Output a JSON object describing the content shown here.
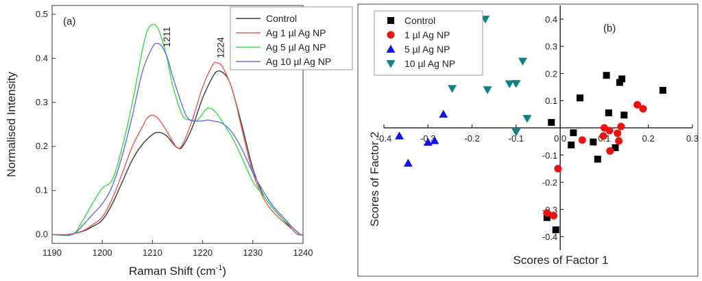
{
  "chart_data": [
    {
      "type": "line",
      "panel_label": "(a)",
      "xlabel": "Raman Shift (cm",
      "xlabel_sup": "-1",
      "xlabel_close": ")",
      "ylabel": "Normalised Intensity",
      "xlim": [
        1190,
        1240
      ],
      "ylim": [
        -0.02,
        0.52
      ],
      "xticks": [
        "1190",
        "1200",
        "1210",
        "1220",
        "1230",
        "1240"
      ],
      "yticks": [
        "0.0",
        "0.1",
        "0.2",
        "0.3",
        "0.4",
        "0.5"
      ],
      "annotations": [
        {
          "text": "1211",
          "x": 1213.5,
          "y": 0.425
        },
        {
          "text": "1224",
          "x": 1224.2,
          "y": 0.4
        }
      ],
      "legend_position": "top-right",
      "series": [
        {
          "name": "Control",
          "color": "#3a3a3a",
          "points": [
            [
              1190,
              0
            ],
            [
              1193,
              0
            ],
            [
              1196,
              0.007
            ],
            [
              1198,
              0.018
            ],
            [
              1200,
              0.033
            ],
            [
              1202,
              0.07
            ],
            [
              1204,
              0.12
            ],
            [
              1206,
              0.17
            ],
            [
              1208,
              0.205
            ],
            [
              1210,
              0.227
            ],
            [
              1211,
              0.232
            ],
            [
              1212,
              0.23
            ],
            [
              1213,
              0.222
            ],
            [
              1214,
              0.208
            ],
            [
              1215,
              0.197
            ],
            [
              1216,
              0.2
            ],
            [
              1218,
              0.245
            ],
            [
              1220,
              0.31
            ],
            [
              1222,
              0.358
            ],
            [
              1223,
              0.371
            ],
            [
              1224,
              0.368
            ],
            [
              1225,
              0.355
            ],
            [
              1226,
              0.325
            ],
            [
              1228,
              0.24
            ],
            [
              1230,
              0.15
            ],
            [
              1232,
              0.092
            ],
            [
              1234,
              0.06
            ],
            [
              1236,
              0.035
            ],
            [
              1238,
              0.01
            ],
            [
              1239,
              0
            ],
            [
              1240,
              0
            ]
          ]
        },
        {
          "name": "Ag 1 µl Ag NP",
          "color": "#e85a5a",
          "points": [
            [
              1190,
              0
            ],
            [
              1193,
              0
            ],
            [
              1196,
              0.008
            ],
            [
              1198,
              0.022
            ],
            [
              1200,
              0.04
            ],
            [
              1202,
              0.082
            ],
            [
              1204,
              0.14
            ],
            [
              1206,
              0.2
            ],
            [
              1208,
              0.245
            ],
            [
              1209,
              0.265
            ],
            [
              1210,
              0.271
            ],
            [
              1211,
              0.265
            ],
            [
              1212,
              0.25
            ],
            [
              1213,
              0.232
            ],
            [
              1214,
              0.212
            ],
            [
              1215,
              0.197
            ],
            [
              1216,
              0.205
            ],
            [
              1218,
              0.262
            ],
            [
              1220,
              0.335
            ],
            [
              1222,
              0.385
            ],
            [
              1222.7,
              0.39
            ],
            [
              1224,
              0.38
            ],
            [
              1226,
              0.325
            ],
            [
              1228,
              0.23
            ],
            [
              1230,
              0.14
            ],
            [
              1232,
              0.085
            ],
            [
              1234,
              0.052
            ],
            [
              1236,
              0.03
            ],
            [
              1238,
              0.01
            ],
            [
              1239,
              0
            ],
            [
              1240,
              0
            ]
          ]
        },
        {
          "name": "Ag 5 µl Ag NP",
          "color": "#33dd44",
          "points": [
            [
              1190,
              0
            ],
            [
              1194,
              0
            ],
            [
              1196,
              0.03
            ],
            [
              1198,
              0.07
            ],
            [
              1200,
              0.105
            ],
            [
              1202,
              0.125
            ],
            [
              1204,
              0.2
            ],
            [
              1206,
              0.3
            ],
            [
              1208,
              0.42
            ],
            [
              1209,
              0.463
            ],
            [
              1210,
              0.477
            ],
            [
              1211,
              0.47
            ],
            [
              1212,
              0.44
            ],
            [
              1213,
              0.395
            ],
            [
              1214,
              0.34
            ],
            [
              1216,
              0.27
            ],
            [
              1218,
              0.26
            ],
            [
              1219,
              0.26
            ],
            [
              1220,
              0.275
            ],
            [
              1221,
              0.287
            ],
            [
              1222,
              0.284
            ],
            [
              1223,
              0.272
            ],
            [
              1224,
              0.255
            ],
            [
              1226,
              0.218
            ],
            [
              1228,
              0.17
            ],
            [
              1230,
              0.12
            ],
            [
              1232,
              0.09
            ],
            [
              1234,
              0.06
            ],
            [
              1236,
              0.035
            ],
            [
              1238,
              0.015
            ],
            [
              1239.5,
              0
            ],
            [
              1240,
              0
            ]
          ]
        },
        {
          "name": "Ag 10 µl Ag NP",
          "color": "#6a6ae8",
          "points": [
            [
              1190,
              0
            ],
            [
              1194,
              0
            ],
            [
              1196,
              0.02
            ],
            [
              1198,
              0.045
            ],
            [
              1200,
              0.07
            ],
            [
              1202,
              0.11
            ],
            [
              1204,
              0.18
            ],
            [
              1206,
              0.27
            ],
            [
              1208,
              0.37
            ],
            [
              1210,
              0.425
            ],
            [
              1211,
              0.434
            ],
            [
              1212,
              0.425
            ],
            [
              1213,
              0.4
            ],
            [
              1214,
              0.36
            ],
            [
              1216,
              0.29
            ],
            [
              1217,
              0.265
            ],
            [
              1218,
              0.258
            ],
            [
              1220,
              0.258
            ],
            [
              1221,
              0.26
            ],
            [
              1222,
              0.258
            ],
            [
              1224,
              0.252
            ],
            [
              1226,
              0.23
            ],
            [
              1228,
              0.19
            ],
            [
              1230,
              0.14
            ],
            [
              1232,
              0.1
            ],
            [
              1234,
              0.065
            ],
            [
              1236,
              0.04
            ],
            [
              1238,
              0.015
            ],
            [
              1239.5,
              0
            ],
            [
              1240,
              0
            ]
          ]
        }
      ]
    },
    {
      "type": "scatter",
      "panel_label": "(b)",
      "xlabel": "Scores of Factor 1",
      "ylabel": "Scores of Factor 2",
      "xlim": [
        -0.4,
        0.3
      ],
      "ylim": [
        -0.45,
        0.45
      ],
      "xticks": [
        {
          "v": -0.4,
          "t": "-0.4"
        },
        {
          "v": -0.3,
          "t": "-0.3"
        },
        {
          "v": -0.2,
          "t": "-0.2"
        },
        {
          "v": -0.1,
          "t": "-0.1"
        },
        {
          "v": 0.0,
          "t": "0.0"
        },
        {
          "v": 0.1,
          "t": "0.1"
        },
        {
          "v": 0.2,
          "t": "0.2"
        },
        {
          "v": 0.3,
          "t": "0.3"
        }
      ],
      "yticks": [
        {
          "v": 0.4,
          "t": "0.4"
        },
        {
          "v": 0.3,
          "t": "0.3"
        },
        {
          "v": 0.2,
          "t": "0.2"
        },
        {
          "v": 0.1,
          "t": "0.1"
        },
        {
          "v": -0.1,
          "t": "-0.1"
        },
        {
          "v": -0.2,
          "t": "-0.2"
        },
        {
          "v": -0.3,
          "t": "-0.3"
        },
        {
          "v": -0.4,
          "t": "-0.4"
        }
      ],
      "legend_position": "top-left",
      "series": [
        {
          "name": "Control",
          "marker": "square",
          "color": "#000000",
          "points": [
            [
              0.105,
              0.193
            ],
            [
              0.14,
              0.18
            ],
            [
              0.135,
              0.167
            ],
            [
              0.233,
              0.138
            ],
            [
              0.045,
              0.11
            ],
            [
              0.11,
              0.055
            ],
            [
              0.145,
              0.047
            ],
            [
              -0.02,
              0.02
            ],
            [
              0.03,
              -0.018
            ],
            [
              0.075,
              -0.052
            ],
            [
              0.025,
              -0.063
            ],
            [
              0.125,
              -0.073
            ],
            [
              0.085,
              -0.115
            ],
            [
              -0.03,
              -0.33
            ],
            [
              -0.01,
              -0.375
            ]
          ]
        },
        {
          "name": "1 µl Ag NP",
          "marker": "circle",
          "color": "#ee1111",
          "points": [
            [
              0.175,
              0.085
            ],
            [
              0.188,
              0.07
            ],
            [
              0.1,
              0.0
            ],
            [
              0.112,
              -0.01
            ],
            [
              0.138,
              0.005
            ],
            [
              0.13,
              -0.02
            ],
            [
              0.098,
              -0.03
            ],
            [
              0.133,
              -0.048
            ],
            [
              0.05,
              -0.045
            ],
            [
              0.113,
              -0.085
            ],
            [
              -0.005,
              -0.15
            ],
            [
              -0.03,
              -0.313
            ],
            [
              -0.015,
              -0.323
            ]
          ]
        },
        {
          "name": "5 µl Ag NP",
          "marker": "triangle-up",
          "color": "#1111ee",
          "points": [
            [
              -0.265,
              0.05
            ],
            [
              -0.365,
              -0.03
            ],
            [
              -0.3,
              -0.053
            ],
            [
              -0.285,
              -0.047
            ],
            [
              -0.345,
              -0.13
            ]
          ]
        },
        {
          "name": "10 µl Ag NP",
          "marker": "triangle-down",
          "color": "#108080",
          "points": [
            [
              -0.17,
              0.4
            ],
            [
              -0.085,
              0.245
            ],
            [
              -0.245,
              0.145
            ],
            [
              -0.165,
              0.14
            ],
            [
              -0.115,
              0.162
            ],
            [
              -0.1,
              0.163
            ],
            [
              -0.075,
              0.035
            ],
            [
              -0.1,
              -0.015
            ]
          ]
        }
      ]
    }
  ]
}
